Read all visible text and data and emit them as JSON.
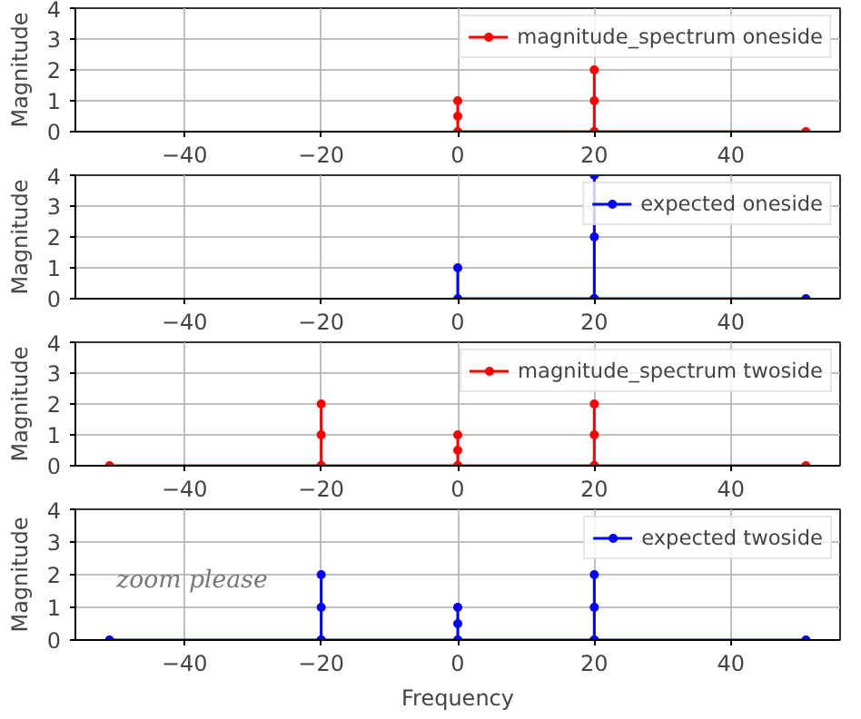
{
  "chart_data": [
    {
      "type": "line",
      "ylabel": "Magnitude",
      "xlim": [
        -56,
        56
      ],
      "ylim": [
        0,
        4
      ],
      "xticks": [
        -40,
        -20,
        0,
        20,
        40
      ],
      "yticks": [
        0,
        1,
        2,
        3,
        4
      ],
      "grid": true,
      "legend": "top right",
      "marker": "circle",
      "line_style": "solid",
      "series": [
        {
          "name": "magnitude_spectrum oneside",
          "color": "#ff0000",
          "x": [
            0,
            0,
            0,
            20,
            20,
            20,
            20,
            51
          ],
          "values": [
            1,
            0.5,
            0,
            0,
            1,
            2,
            0,
            0
          ]
        }
      ]
    },
    {
      "type": "line",
      "ylabel": "Magnitude",
      "xlim": [
        -56,
        56
      ],
      "ylim": [
        0,
        4
      ],
      "xticks": [
        -40,
        -20,
        0,
        20,
        40
      ],
      "yticks": [
        0,
        1,
        2,
        3,
        4
      ],
      "grid": true,
      "legend": "top right",
      "marker": "circle",
      "line_style": "solid",
      "series": [
        {
          "name": "expected oneside",
          "color": "#0000ff",
          "x": [
            0,
            0,
            20,
            20,
            20,
            20,
            51
          ],
          "values": [
            1,
            0,
            0,
            2,
            4,
            0,
            0
          ]
        }
      ]
    },
    {
      "type": "line",
      "ylabel": "Magnitude",
      "xlim": [
        -56,
        56
      ],
      "ylim": [
        0,
        4
      ],
      "xticks": [
        -40,
        -20,
        0,
        20,
        40
      ],
      "yticks": [
        0,
        1,
        2,
        3,
        4
      ],
      "grid": true,
      "legend": "top right",
      "marker": "circle",
      "line_style": "solid",
      "series": [
        {
          "name": "magnitude_spectrum twoside",
          "color": "#ff0000",
          "x": [
            -51,
            -20,
            -20,
            -20,
            -20,
            0,
            0,
            0,
            0,
            20,
            20,
            20,
            20,
            51
          ],
          "values": [
            0,
            0,
            1,
            2,
            0,
            0,
            0.5,
            1,
            0,
            0,
            1,
            2,
            0,
            0
          ]
        }
      ]
    },
    {
      "type": "line",
      "ylabel": "Magnitude",
      "xlabel": "Frequency",
      "xlim": [
        -56,
        56
      ],
      "ylim": [
        0,
        4
      ],
      "xticks": [
        -40,
        -20,
        0,
        20,
        40
      ],
      "yticks": [
        0,
        1,
        2,
        3,
        4
      ],
      "grid": true,
      "legend": "top right",
      "marker": "circle",
      "line_style": "solid",
      "annotations": [
        "zoom please"
      ],
      "series": [
        {
          "name": "expected twoside",
          "color": "#0000ff",
          "x": [
            -51,
            -20,
            -20,
            -20,
            -20,
            0,
            0,
            0,
            0,
            20,
            20,
            20,
            20,
            51
          ],
          "values": [
            0,
            0,
            1,
            2,
            0,
            0,
            0.5,
            1,
            0,
            0,
            1,
            2,
            0,
            0
          ]
        }
      ]
    }
  ]
}
